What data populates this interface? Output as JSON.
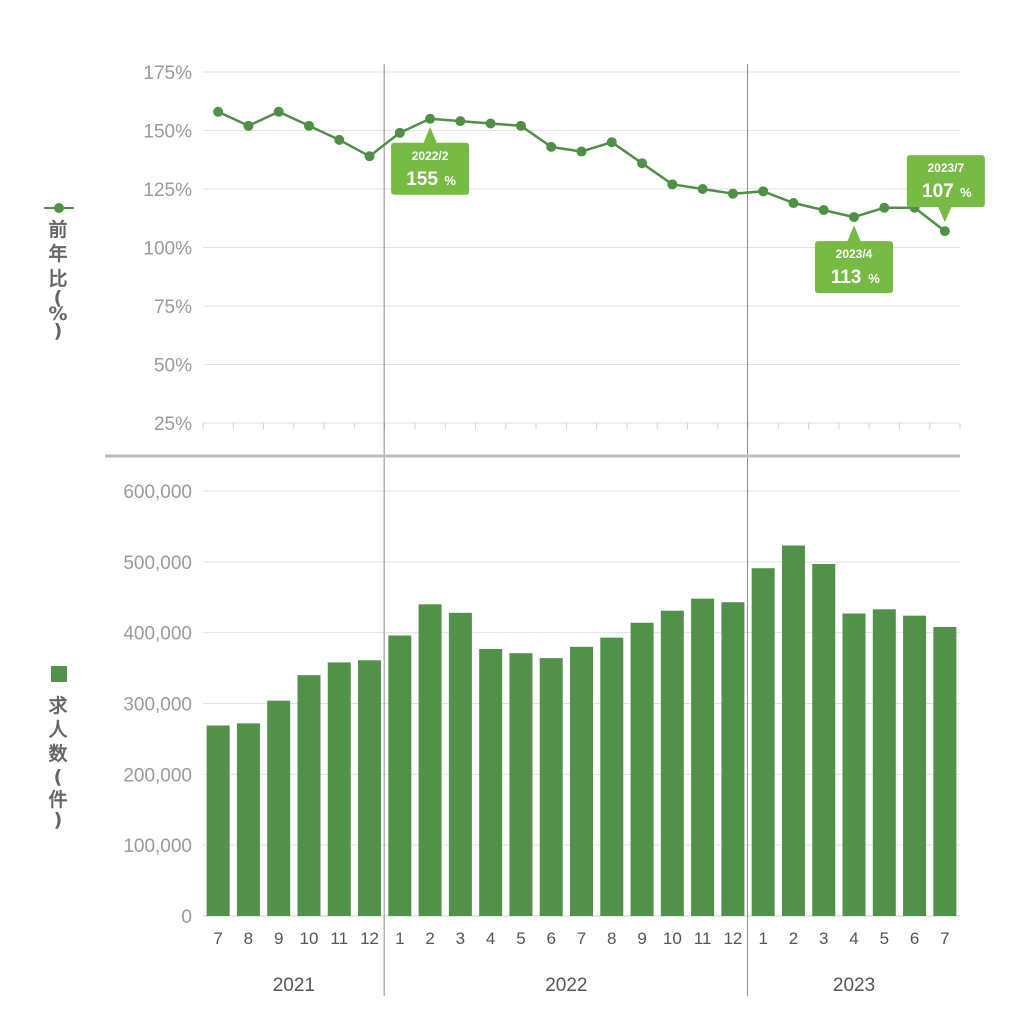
{
  "chart_data": [
    {
      "type": "line",
      "ylabel": "前年比(%)",
      "ylim": [
        25,
        175
      ],
      "y_ticks": [
        "175%",
        "150%",
        "125%",
        "100%",
        "75%",
        "50%",
        "25%"
      ],
      "x": [
        "7",
        "8",
        "9",
        "10",
        "11",
        "12",
        "1",
        "2",
        "3",
        "4",
        "5",
        "6",
        "7",
        "8",
        "9",
        "10",
        "11",
        "12",
        "1",
        "2",
        "3",
        "4",
        "5",
        "6",
        "7"
      ],
      "series": [
        {
          "values": [
            158,
            152,
            158,
            152,
            146,
            139,
            149,
            155,
            154,
            153,
            152,
            143,
            141,
            145,
            136,
            127,
            125,
            123,
            124,
            119,
            116,
            113,
            117,
            117,
            107
          ]
        }
      ],
      "annotations": [
        {
          "index": 7,
          "date": "2022/2",
          "value": "155",
          "unit": "%"
        },
        {
          "index": 21,
          "date": "2023/4",
          "value": "113",
          "unit": "%"
        },
        {
          "index": 24,
          "date": "2023/7",
          "value": "107",
          "unit": "%"
        }
      ],
      "color": "#4f8f46",
      "callout_color": "#77bb45"
    },
    {
      "type": "bar",
      "ylabel": "求人数(件)",
      "ylim": [
        0,
        600000
      ],
      "y_ticks": [
        "600,000",
        "500,000",
        "400,000",
        "300,000",
        "200,000",
        "100,000",
        "0"
      ],
      "categories": [
        "7",
        "8",
        "9",
        "10",
        "11",
        "12",
        "1",
        "2",
        "3",
        "4",
        "5",
        "6",
        "7",
        "8",
        "9",
        "10",
        "11",
        "12",
        "1",
        "2",
        "3",
        "4",
        "5",
        "6",
        "7"
      ],
      "series": [
        {
          "values": [
            269000,
            272000,
            304000,
            340000,
            358000,
            361000,
            396000,
            440000,
            428000,
            377000,
            371000,
            364000,
            380000,
            393000,
            414000,
            431000,
            448000,
            443000,
            491000,
            523000,
            497000,
            427000,
            433000,
            424000,
            408000
          ]
        }
      ],
      "years": [
        {
          "label": "2021",
          "start": 0,
          "end": 5
        },
        {
          "label": "2022",
          "start": 6,
          "end": 17
        },
        {
          "label": "2023",
          "start": 18,
          "end": 24
        }
      ],
      "color": "#52914a"
    }
  ]
}
